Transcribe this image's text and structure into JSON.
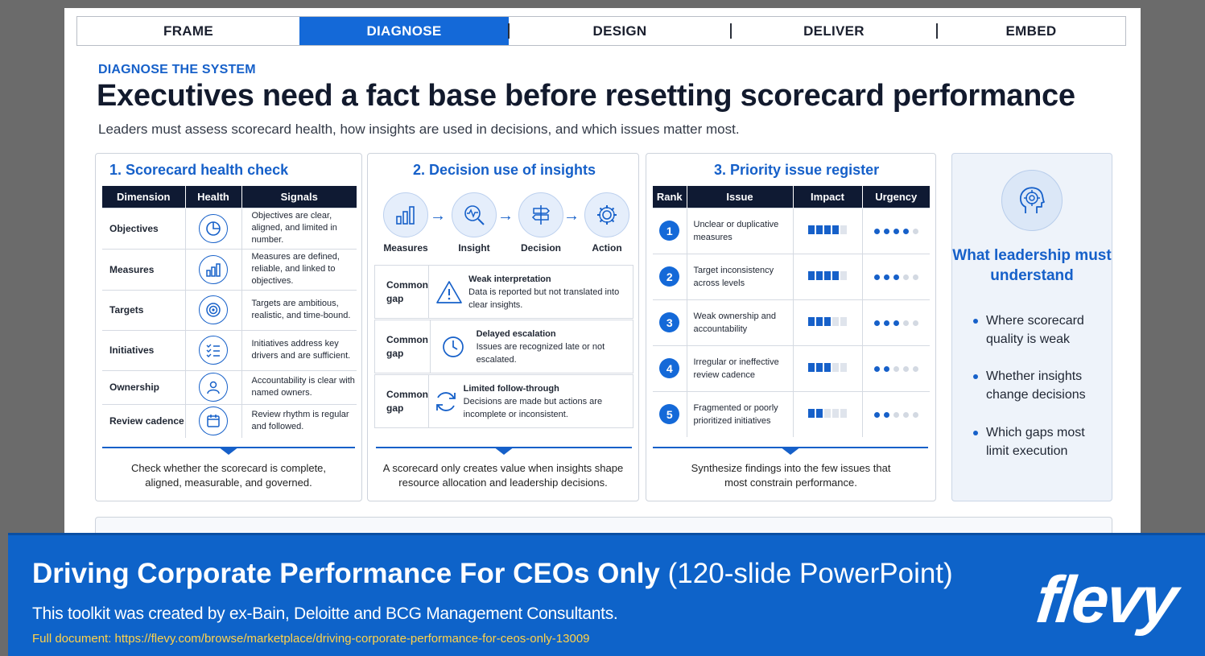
{
  "nav": {
    "tabs": [
      "FRAME",
      "DIAGNOSE",
      "DESIGN",
      "DELIVER",
      "EMBED"
    ],
    "active": "DIAGNOSE"
  },
  "header": {
    "eyebrow": "DIAGNOSE THE SYSTEM",
    "title": "Executives need a fact base before resetting scorecard performance",
    "subtitle": "Leaders must assess scorecard health, how insights are used in decisions, and which issues matter most."
  },
  "panel1": {
    "title": "1. Scorecard health check",
    "columns": [
      "Dimension",
      "Health",
      "Signals"
    ],
    "rows": [
      {
        "dimension": "Objectives",
        "icon": "pie-chart-icon",
        "signal": "Objectives are clear, aligned, and limited in number."
      },
      {
        "dimension": "Measures",
        "icon": "bar-chart-icon",
        "signal": "Measures are defined, reliable, and linked to objectives."
      },
      {
        "dimension": "Targets",
        "icon": "target-icon",
        "signal": "Targets are ambitious, realistic, and time-bound."
      },
      {
        "dimension": "Initiatives",
        "icon": "checklist-icon",
        "signal": "Initiatives address key drivers and are sufficient."
      },
      {
        "dimension": "Ownership",
        "icon": "person-icon",
        "signal": "Accountability is clear with named owners."
      },
      {
        "dimension": "Review cadence",
        "icon": "calendar-icon",
        "signal": "Review rhythm is regular and followed."
      }
    ],
    "footer": "Check whether the scorecard is complete, aligned, measurable, and governed."
  },
  "panel2": {
    "title": "2. Decision use of insights",
    "flow": [
      "Measures",
      "Insight",
      "Decision",
      "Action"
    ],
    "gaps": [
      {
        "label": "Common gap",
        "icon": "warning-icon",
        "heading": "Weak interpretation",
        "text": "Data is reported but not translated into clear insights."
      },
      {
        "label": "Common gap",
        "icon": "clock-icon",
        "heading": "Delayed escalation",
        "text": "Issues are recognized late or not escalated."
      },
      {
        "label": "Common gap",
        "icon": "refresh-icon",
        "heading": "Limited follow-through",
        "text": "Decisions are made but actions are incomplete or inconsistent."
      }
    ],
    "footer": "A scorecard only creates value when insights shape resource allocation and leadership decisions."
  },
  "panel3": {
    "title": "3. Priority issue register",
    "columns": [
      "Rank",
      "Issue",
      "Impact",
      "Urgency"
    ],
    "rows": [
      {
        "rank": "1",
        "issue": "Unclear or duplicative measures",
        "impact": 4,
        "urgency": 4
      },
      {
        "rank": "2",
        "issue": "Target inconsistency across levels",
        "impact": 4,
        "urgency": 3
      },
      {
        "rank": "3",
        "issue": "Weak ownership and accountability",
        "impact": 3,
        "urgency": 3
      },
      {
        "rank": "4",
        "issue": "Irregular or ineffective review cadence",
        "impact": 3,
        "urgency": 2
      },
      {
        "rank": "5",
        "issue": "Fragmented or poorly prioritized initiatives",
        "impact": 2,
        "urgency": 2
      }
    ],
    "scale_max": 5,
    "footer": "Synthesize findings into the few issues that most constrain performance."
  },
  "panel4": {
    "icon": "head-target-icon",
    "title": "What leadership must understand",
    "bullets": [
      "Where scorecard quality is weak",
      "Whether insights change decisions",
      "Which gaps most limit execution"
    ]
  },
  "banner": {
    "title_bold": "Driving Corporate Performance For CEOs Only",
    "title_light": "(120-slide PowerPoint)",
    "subtitle": "This toolkit was created by ex-Bain, Deloitte and BCG Management Consultants.",
    "url": "Full document: https://flevy.com/browse/marketplace/driving-corporate-performance-for-ceos-only-13009",
    "logo": "flevy"
  },
  "colors": {
    "accent": "#1660c9",
    "banner": "#0e63c9",
    "header_dark": "#0f1a33",
    "url": "#ffd24a"
  }
}
